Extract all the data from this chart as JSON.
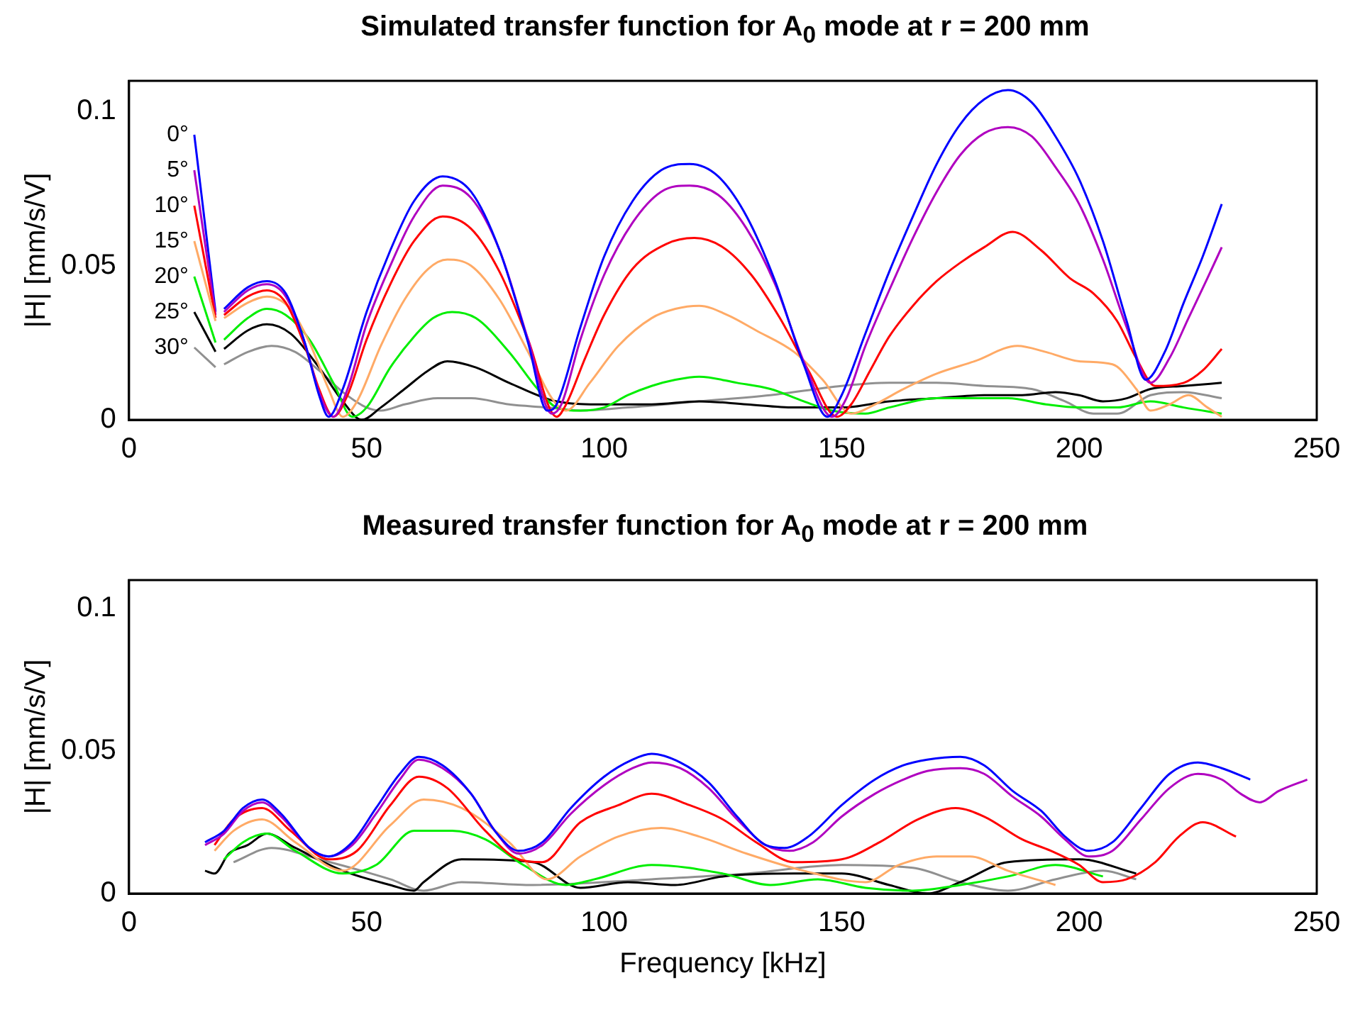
{
  "chart_data": [
    {
      "type": "line",
      "title": "Simulated transfer function for A$_{0}$ mode at r = 200 mm",
      "ylabel": "|H| [mm/s/V]",
      "xlim": [
        0,
        250
      ],
      "xticks": [
        0,
        50,
        100,
        150,
        200,
        250
      ],
      "ylim": [
        0,
        0.11
      ],
      "yticks": [
        0,
        0.05,
        0.1
      ],
      "legend": "left",
      "series": [
        {
          "name": "0°",
          "color": "#0000ff",
          "x": [
            20,
            25,
            29,
            33,
            37,
            40,
            42,
            45,
            50,
            55,
            60,
            66,
            72,
            78,
            84,
            88,
            90,
            95,
            100,
            106,
            112,
            118,
            124,
            130,
            136,
            142,
            147,
            150,
            155,
            160,
            165,
            170,
            175,
            180,
            185,
            190,
            195,
            200,
            205,
            210,
            214,
            218,
            222,
            226,
            230
          ],
          "values": [
            0.036,
            0.043,
            0.045,
            0.041,
            0.025,
            0.008,
            0.001,
            0.01,
            0.035,
            0.055,
            0.071,
            0.079,
            0.074,
            0.055,
            0.025,
            0.003,
            0.005,
            0.03,
            0.053,
            0.071,
            0.081,
            0.083,
            0.079,
            0.066,
            0.045,
            0.018,
            0.001,
            0.008,
            0.028,
            0.048,
            0.066,
            0.083,
            0.096,
            0.104,
            0.107,
            0.103,
            0.092,
            0.078,
            0.058,
            0.032,
            0.013,
            0.022,
            0.038,
            0.053,
            0.07
          ]
        },
        {
          "name": "5°",
          "color": "#b000c0",
          "x": [
            20,
            25,
            29,
            33,
            37,
            40,
            43,
            46,
            50,
            55,
            60,
            66,
            72,
            78,
            84,
            89,
            91,
            95,
            100,
            106,
            112,
            118,
            124,
            130,
            136,
            142,
            148,
            151,
            155,
            160,
            165,
            170,
            175,
            180,
            185,
            190,
            195,
            200,
            205,
            210,
            215,
            219,
            223,
            227,
            230
          ],
          "values": [
            0.035,
            0.042,
            0.044,
            0.04,
            0.025,
            0.009,
            0.001,
            0.01,
            0.031,
            0.05,
            0.066,
            0.076,
            0.072,
            0.055,
            0.026,
            0.002,
            0.005,
            0.026,
            0.047,
            0.064,
            0.074,
            0.076,
            0.073,
            0.062,
            0.044,
            0.019,
            0.001,
            0.007,
            0.024,
            0.042,
            0.059,
            0.074,
            0.086,
            0.093,
            0.095,
            0.092,
            0.082,
            0.07,
            0.052,
            0.03,
            0.012,
            0.02,
            0.033,
            0.046,
            0.056
          ]
        },
        {
          "name": "10°",
          "color": "#ff0000",
          "x": [
            20,
            25,
            29,
            33,
            37,
            40,
            43,
            46,
            50,
            55,
            60,
            66,
            72,
            78,
            84,
            90,
            92,
            96,
            100,
            106,
            113,
            119,
            125,
            131,
            137,
            143,
            149,
            152,
            156,
            160,
            165,
            170,
            175,
            180,
            186,
            192,
            198,
            203,
            208,
            212,
            216,
            222,
            226,
            230
          ],
          "values": [
            0.034,
            0.04,
            0.042,
            0.038,
            0.024,
            0.01,
            0.001,
            0.008,
            0.026,
            0.044,
            0.058,
            0.066,
            0.062,
            0.048,
            0.026,
            0.001,
            0.005,
            0.02,
            0.034,
            0.049,
            0.057,
            0.059,
            0.056,
            0.047,
            0.033,
            0.016,
            0.001,
            0.005,
            0.016,
            0.027,
            0.037,
            0.045,
            0.051,
            0.056,
            0.061,
            0.055,
            0.046,
            0.041,
            0.032,
            0.02,
            0.011,
            0.012,
            0.016,
            0.023
          ]
        },
        {
          "name": "15°",
          "color": "#ffaa66",
          "x": [
            20,
            25,
            29,
            34,
            38,
            42,
            45,
            48,
            53,
            58,
            63,
            67,
            72,
            78,
            84,
            89,
            92,
            97,
            103,
            110,
            115,
            120,
            126,
            132,
            140,
            146,
            152,
            157,
            163,
            170,
            178,
            187,
            193,
            200,
            207,
            212,
            215,
            219,
            223,
            227,
            230
          ],
          "values": [
            0.033,
            0.038,
            0.04,
            0.036,
            0.025,
            0.01,
            0.001,
            0.006,
            0.024,
            0.039,
            0.049,
            0.052,
            0.05,
            0.039,
            0.022,
            0.007,
            0.003,
            0.012,
            0.024,
            0.033,
            0.036,
            0.037,
            0.034,
            0.029,
            0.022,
            0.013,
            0.002,
            0.005,
            0.01,
            0.015,
            0.019,
            0.024,
            0.022,
            0.019,
            0.018,
            0.01,
            0.003,
            0.005,
            0.008,
            0.004,
            0.001
          ]
        },
        {
          "name": "20°",
          "color": "#00ee00",
          "x": [
            20,
            25,
            29,
            33,
            38,
            43,
            47,
            50,
            55,
            60,
            64,
            68,
            73,
            80,
            86,
            90,
            95,
            100,
            105,
            110,
            115,
            120,
            128,
            135,
            142,
            148,
            155,
            160,
            170,
            178,
            185,
            193,
            200,
            208,
            215,
            222,
            230
          ],
          "values": [
            0.026,
            0.033,
            0.036,
            0.034,
            0.026,
            0.012,
            0.001,
            0.004,
            0.017,
            0.027,
            0.033,
            0.035,
            0.033,
            0.022,
            0.01,
            0.004,
            0.003,
            0.004,
            0.008,
            0.011,
            0.013,
            0.014,
            0.012,
            0.01,
            0.006,
            0.003,
            0.002,
            0.004,
            0.007,
            0.007,
            0.007,
            0.005,
            0.004,
            0.004,
            0.006,
            0.004,
            0.002
          ]
        },
        {
          "name": "25°",
          "color": "#000000",
          "x": [
            20,
            25,
            29,
            34,
            40,
            45,
            49,
            53,
            58,
            63,
            67,
            73,
            80,
            90,
            100,
            110,
            120,
            130,
            140,
            150,
            160,
            170,
            180,
            188,
            195,
            200,
            205,
            210,
            215,
            222,
            230
          ],
          "values": [
            0.023,
            0.029,
            0.031,
            0.028,
            0.017,
            0.006,
            0.0,
            0.004,
            0.01,
            0.016,
            0.019,
            0.017,
            0.012,
            0.006,
            0.005,
            0.005,
            0.006,
            0.005,
            0.004,
            0.004,
            0.006,
            0.007,
            0.008,
            0.008,
            0.009,
            0.008,
            0.006,
            0.007,
            0.01,
            0.011,
            0.012
          ]
        },
        {
          "name": "30°",
          "color": "#909090",
          "x": [
            20,
            25,
            30,
            35,
            40,
            45,
            50,
            53,
            58,
            65,
            72,
            80,
            88,
            95,
            105,
            120,
            135,
            150,
            160,
            170,
            180,
            190,
            197,
            203,
            208,
            215,
            222,
            230
          ],
          "values": [
            0.018,
            0.022,
            0.024,
            0.022,
            0.016,
            0.009,
            0.004,
            0.003,
            0.005,
            0.007,
            0.007,
            0.005,
            0.004,
            0.003,
            0.004,
            0.006,
            0.008,
            0.011,
            0.012,
            0.012,
            0.011,
            0.01,
            0.006,
            0.002,
            0.002,
            0.008,
            0.009,
            0.007
          ]
        }
      ]
    },
    {
      "type": "line",
      "title": "Measured transfer function for A$_{0}$ mode at r = 200 mm",
      "xlabel": "Frequency [kHz]",
      "ylabel": "|H| [mm/s/V]",
      "xlim": [
        0,
        250
      ],
      "xticks": [
        0,
        50,
        100,
        150,
        200,
        250
      ],
      "ylim": [
        0,
        0.11
      ],
      "yticks": [
        0,
        0.05,
        0.1
      ],
      "legend": false,
      "series": [
        {
          "color": "#0000ff",
          "x": [
            16,
            20,
            24,
            28,
            32,
            38,
            42,
            47,
            52,
            57,
            61,
            66,
            72,
            77,
            82,
            87,
            93,
            100,
            106,
            110,
            116,
            122,
            128,
            134,
            138,
            143,
            150,
            157,
            163,
            168,
            175,
            180,
            186,
            192,
            197,
            202,
            207,
            213,
            219,
            225,
            230,
            236
          ],
          "values": [
            0.018,
            0.022,
            0.03,
            0.033,
            0.028,
            0.016,
            0.013,
            0.018,
            0.03,
            0.042,
            0.048,
            0.045,
            0.035,
            0.022,
            0.015,
            0.018,
            0.03,
            0.041,
            0.047,
            0.049,
            0.046,
            0.039,
            0.027,
            0.017,
            0.016,
            0.02,
            0.031,
            0.04,
            0.045,
            0.047,
            0.048,
            0.045,
            0.036,
            0.029,
            0.02,
            0.015,
            0.018,
            0.03,
            0.042,
            0.046,
            0.044,
            0.04
          ]
        },
        {
          "color": "#b000c0",
          "x": [
            16,
            20,
            24,
            28,
            32,
            38,
            42,
            47,
            52,
            57,
            61,
            66,
            72,
            77,
            82,
            87,
            93,
            100,
            106,
            110,
            116,
            122,
            128,
            134,
            139,
            144,
            150,
            157,
            163,
            168,
            175,
            180,
            186,
            192,
            197,
            202,
            207,
            213,
            219,
            225,
            230,
            234,
            238,
            242,
            248
          ],
          "values": [
            0.017,
            0.021,
            0.029,
            0.032,
            0.027,
            0.016,
            0.013,
            0.017,
            0.028,
            0.04,
            0.047,
            0.044,
            0.035,
            0.022,
            0.014,
            0.017,
            0.028,
            0.038,
            0.044,
            0.046,
            0.044,
            0.037,
            0.026,
            0.017,
            0.015,
            0.018,
            0.027,
            0.035,
            0.04,
            0.043,
            0.044,
            0.042,
            0.034,
            0.027,
            0.019,
            0.013,
            0.015,
            0.026,
            0.037,
            0.042,
            0.04,
            0.035,
            0.032,
            0.036,
            0.04
          ]
        },
        {
          "color": "#ff0000",
          "x": [
            18,
            22,
            28,
            34,
            42,
            48,
            55,
            61,
            67,
            75,
            82,
            87,
            95,
            103,
            110,
            118,
            125,
            132,
            140,
            150,
            158,
            166,
            174,
            180,
            188,
            194,
            200,
            205,
            210,
            216,
            221,
            226,
            233
          ],
          "values": [
            0.017,
            0.026,
            0.03,
            0.022,
            0.012,
            0.015,
            0.031,
            0.041,
            0.037,
            0.022,
            0.012,
            0.011,
            0.025,
            0.031,
            0.035,
            0.031,
            0.026,
            0.018,
            0.011,
            0.012,
            0.018,
            0.026,
            0.03,
            0.027,
            0.019,
            0.015,
            0.01,
            0.004,
            0.005,
            0.011,
            0.02,
            0.025,
            0.02
          ]
        },
        {
          "color": "#ffaa66",
          "x": [
            18,
            22,
            28,
            35,
            45,
            55,
            62,
            70,
            80,
            88,
            95,
            103,
            112,
            120,
            130,
            142,
            155,
            162,
            170,
            177,
            185,
            195
          ],
          "values": [
            0.015,
            0.022,
            0.026,
            0.018,
            0.008,
            0.024,
            0.033,
            0.03,
            0.018,
            0.005,
            0.013,
            0.02,
            0.023,
            0.02,
            0.014,
            0.008,
            0.004,
            0.01,
            0.013,
            0.013,
            0.008,
            0.003
          ]
        },
        {
          "color": "#00ee00",
          "x": [
            20,
            24,
            29,
            35,
            45,
            52,
            60,
            68,
            75,
            83,
            92,
            98,
            110,
            125,
            135,
            145,
            155,
            165,
            175,
            185,
            195,
            205
          ],
          "values": [
            0.012,
            0.018,
            0.021,
            0.015,
            0.007,
            0.01,
            0.022,
            0.022,
            0.019,
            0.01,
            0.003,
            0.005,
            0.01,
            0.007,
            0.003,
            0.005,
            0.002,
            0.001,
            0.003,
            0.006,
            0.01,
            0.006
          ]
        },
        {
          "color": "#000000",
          "x": [
            16,
            18,
            21,
            25,
            29,
            35,
            45,
            55,
            60,
            62,
            70,
            85,
            95,
            105,
            115,
            125,
            140,
            150,
            160,
            168,
            175,
            185,
            200,
            212
          ],
          "values": [
            0.008,
            0.007,
            0.014,
            0.017,
            0.021,
            0.016,
            0.008,
            0.003,
            0.001,
            0.004,
            0.012,
            0.011,
            0.002,
            0.004,
            0.003,
            0.006,
            0.007,
            0.007,
            0.003,
            0.0,
            0.004,
            0.011,
            0.012,
            0.007
          ]
        },
        {
          "color": "#909090",
          "x": [
            22,
            30,
            40,
            55,
            62,
            70,
            85,
            110,
            130,
            150,
            165,
            175,
            185,
            195,
            205,
            212
          ],
          "values": [
            0.011,
            0.016,
            0.012,
            0.005,
            0.001,
            0.004,
            0.003,
            0.005,
            0.007,
            0.01,
            0.009,
            0.004,
            0.001,
            0.005,
            0.008,
            0.005
          ]
        }
      ]
    }
  ]
}
